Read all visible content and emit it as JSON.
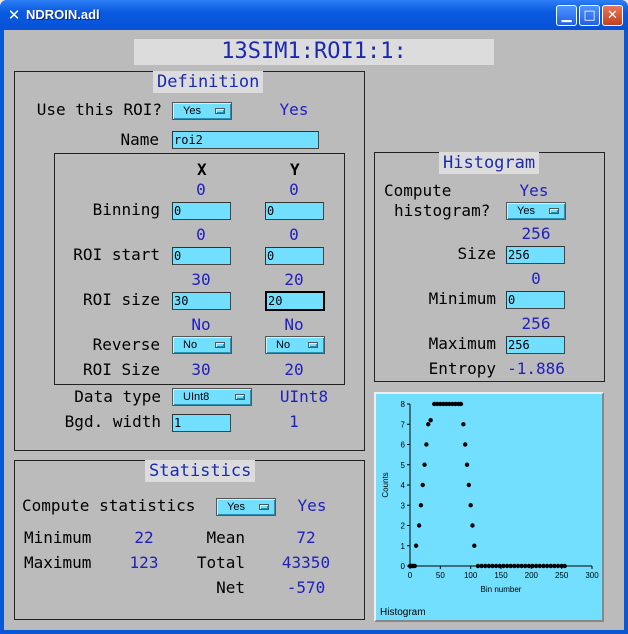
{
  "window": {
    "title": "NDROIN.adl",
    "icon": "x-logo-icon"
  },
  "header": {
    "pv_prefix": "13SIM1:ROI1:1:"
  },
  "definition": {
    "title": "Definition",
    "use_roi": {
      "label": "Use this ROI?",
      "menu": "Yes",
      "readback": "Yes"
    },
    "name": {
      "label": "Name",
      "value": "roi2"
    },
    "col_x": "X",
    "col_y": "Y",
    "binning": {
      "label": "Binning",
      "x_rb": "0",
      "y_rb": "0",
      "x_val": "0",
      "y_val": "0"
    },
    "roi_start": {
      "label": "ROI start",
      "x_rb": "0",
      "y_rb": "0",
      "x_val": "0",
      "y_val": "0"
    },
    "roi_size": {
      "label": "ROI size",
      "x_rb": "30",
      "y_rb": "20",
      "x_val": "30",
      "y_val": "20"
    },
    "reverse": {
      "label": "Reverse",
      "x_rb": "No",
      "y_rb": "No",
      "x_menu": "No",
      "y_menu": "No"
    },
    "roi_size_rb": {
      "label": "ROI Size",
      "x": "30",
      "y": "20"
    },
    "data_type": {
      "label": "Data type",
      "menu": "UInt8",
      "readback": "UInt8"
    },
    "bgd_width": {
      "label": "Bgd. width",
      "value": "1",
      "readback": "1"
    }
  },
  "histogram": {
    "title": "Histogram",
    "compute": {
      "label1": "Compute",
      "label2": "histogram?",
      "readback": "Yes",
      "menu": "Yes"
    },
    "size": {
      "label": "Size",
      "readback": "256",
      "value": "256"
    },
    "minimum": {
      "label": "Minimum",
      "readback": "0",
      "value": "0"
    },
    "maximum": {
      "label": "Maximum",
      "readback": "256",
      "value": "256"
    },
    "entropy": {
      "label": "Entropy",
      "value": "-1.886"
    }
  },
  "statistics": {
    "title": "Statistics",
    "compute": {
      "label": "Compute statistics",
      "menu": "Yes",
      "readback": "Yes"
    },
    "minimum": {
      "label": "Minimum",
      "value": "22"
    },
    "maximum": {
      "label": "Maximum",
      "value": "123"
    },
    "mean": {
      "label": "Mean",
      "value": "72"
    },
    "total": {
      "label": "Total",
      "value": "43350"
    },
    "net": {
      "label": "Net",
      "value": "-570"
    }
  },
  "chart_data": {
    "type": "scatter",
    "title": "Histogram",
    "xlabel": "Bin number",
    "ylabel": "Counts",
    "xlim": [
      0,
      300
    ],
    "ylim": [
      0,
      8
    ],
    "xticks": [
      "0",
      "50",
      "100",
      "150",
      "200",
      "250",
      "300"
    ],
    "yticks": [
      "0",
      "1",
      "2",
      "3",
      "4",
      "5",
      "6",
      "7",
      "8"
    ],
    "series": [
      {
        "points": [
          [
            10,
            1
          ],
          [
            15,
            2
          ],
          [
            18,
            3
          ],
          [
            21,
            4
          ],
          [
            24,
            5
          ],
          [
            27,
            6
          ],
          [
            30,
            7
          ],
          [
            34,
            7.2
          ],
          [
            40,
            8
          ],
          [
            45,
            8
          ],
          [
            50,
            8
          ],
          [
            55,
            8
          ],
          [
            60,
            8
          ],
          [
            65,
            8
          ],
          [
            70,
            8
          ],
          [
            75,
            8
          ],
          [
            80,
            8
          ],
          [
            84,
            8
          ],
          [
            88,
            7
          ],
          [
            91,
            6
          ],
          [
            94,
            5
          ],
          [
            97,
            4
          ],
          [
            100,
            3
          ],
          [
            103,
            2
          ],
          [
            106,
            1
          ],
          [
            0,
            0
          ],
          [
            2,
            0
          ],
          [
            4,
            0
          ],
          [
            6,
            0
          ],
          [
            8,
            0
          ],
          [
            112,
            0
          ],
          [
            118,
            0
          ],
          [
            124,
            0
          ],
          [
            130,
            0
          ],
          [
            136,
            0
          ],
          [
            142,
            0
          ],
          [
            148,
            0
          ],
          [
            154,
            0
          ],
          [
            160,
            0
          ],
          [
            166,
            0
          ],
          [
            172,
            0
          ],
          [
            178,
            0
          ],
          [
            184,
            0
          ],
          [
            190,
            0
          ],
          [
            196,
            0
          ],
          [
            202,
            0
          ],
          [
            208,
            0
          ],
          [
            214,
            0
          ],
          [
            220,
            0
          ],
          [
            226,
            0
          ],
          [
            232,
            0
          ],
          [
            238,
            0
          ],
          [
            244,
            0
          ],
          [
            250,
            0
          ],
          [
            255,
            0
          ]
        ]
      }
    ]
  }
}
